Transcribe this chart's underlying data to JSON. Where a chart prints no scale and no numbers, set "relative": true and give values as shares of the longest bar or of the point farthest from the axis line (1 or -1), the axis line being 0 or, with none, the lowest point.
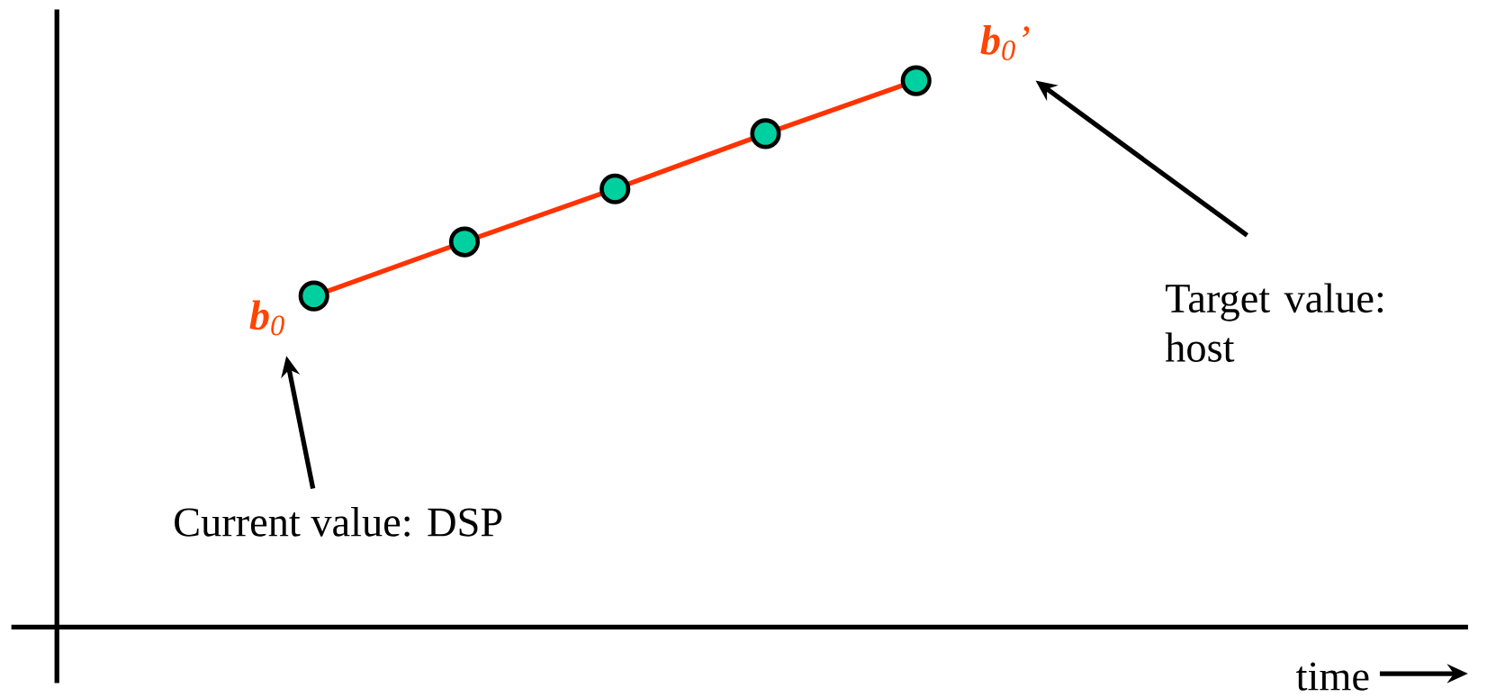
{
  "chart_data": {
    "type": "line",
    "relative": true,
    "categories": [
      null,
      null,
      null,
      null,
      null
    ],
    "series": [
      {
        "color": "#ff3300",
        "values": [
          0.606,
          0.705,
          0.802,
          0.903,
          1.0
        ]
      }
    ],
    "marker": "circle",
    "line_style": "solid",
    "annotations": [
      "**b**$_{0}$",
      "Current value: DSP",
      "**b**$_{0}$’",
      "Target value: host",
      "time"
    ]
  }
}
